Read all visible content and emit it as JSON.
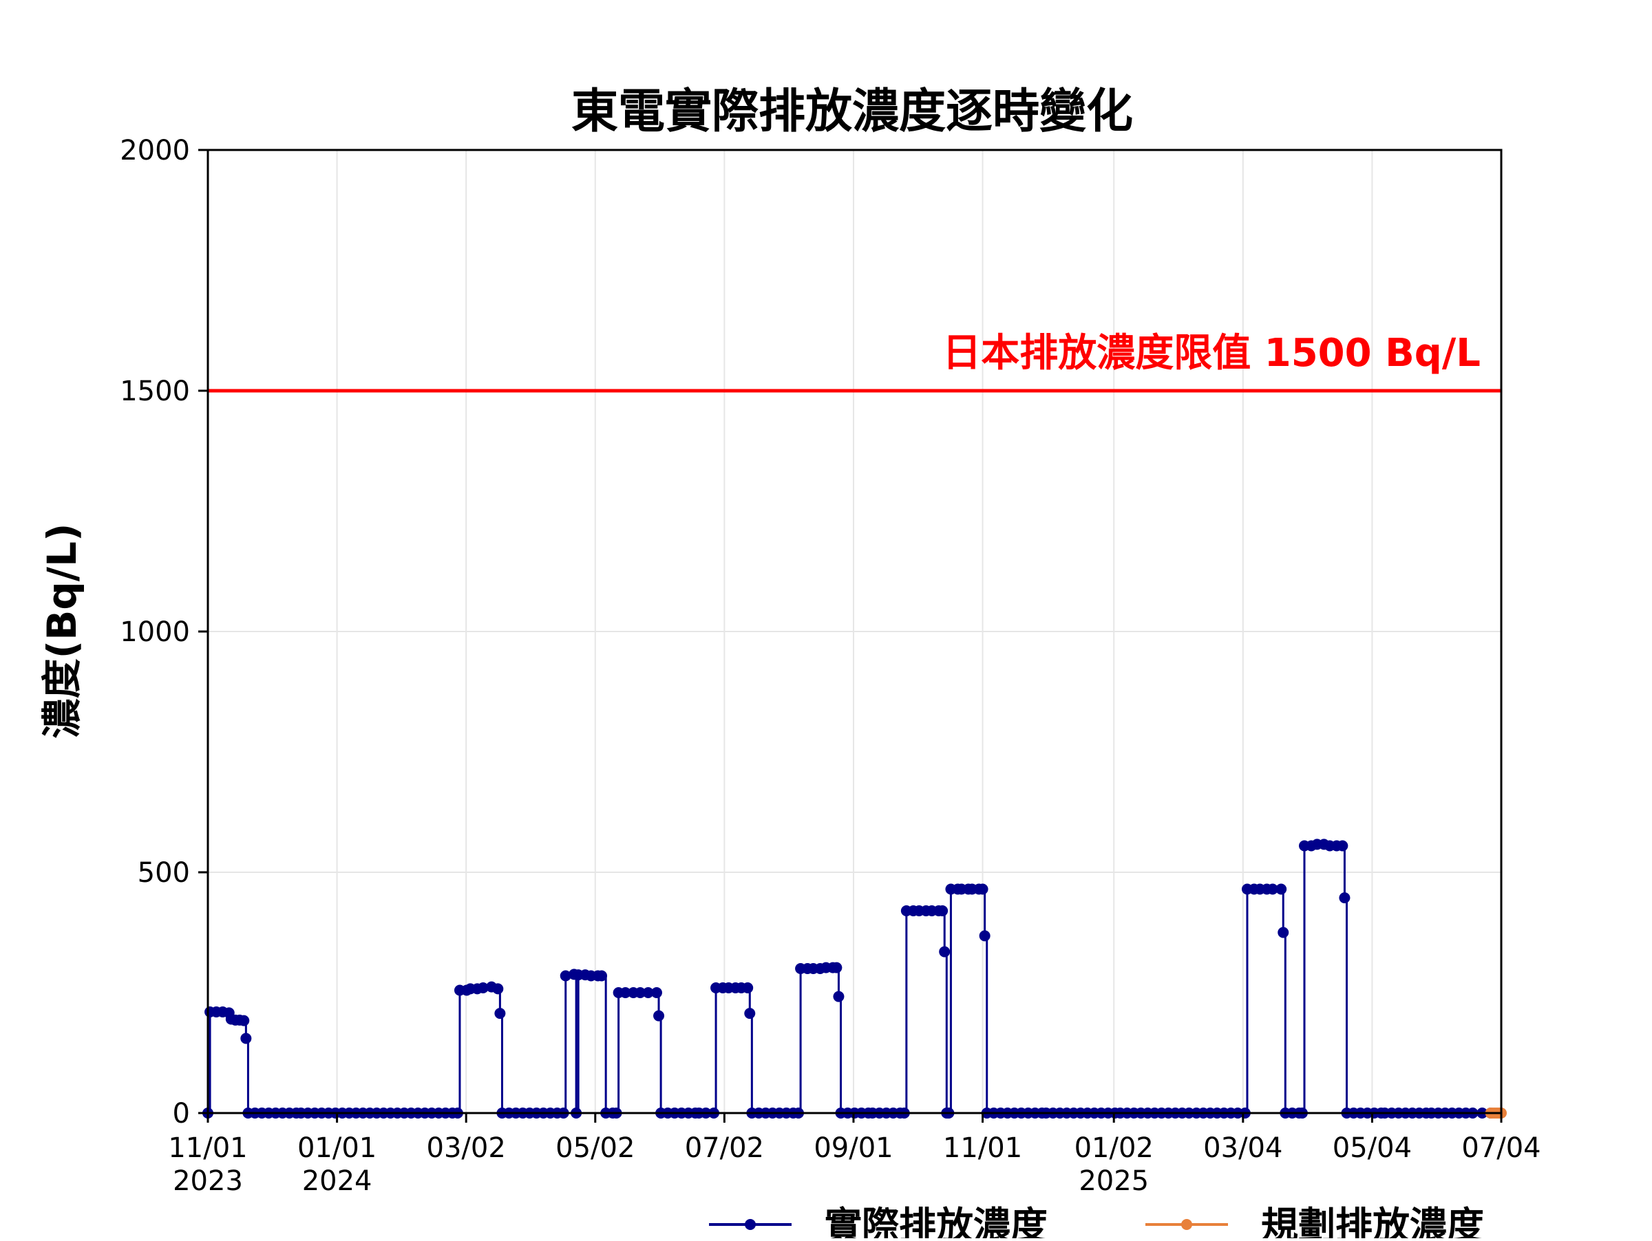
{
  "chart_data": {
    "type": "line",
    "title": "東電實際排放濃度逐時變化",
    "ylabel": "濃度(Bq/L)",
    "xlabel": "",
    "ylim": [
      0,
      2000
    ],
    "xlim": [
      "2023-11-01",
      "2025-07-04"
    ],
    "yticks": [
      {
        "value": 0,
        "label": "0"
      },
      {
        "value": 500,
        "label": "500"
      },
      {
        "value": 1000,
        "label": "1000"
      },
      {
        "value": 1500,
        "label": "1500"
      },
      {
        "value": 2000,
        "label": "2000"
      }
    ],
    "xticks": [
      {
        "date": "2023-11-01",
        "label": "11/01",
        "sublabel": "2023"
      },
      {
        "date": "2024-01-01",
        "label": "01/01",
        "sublabel": "2024"
      },
      {
        "date": "2024-03-02",
        "label": "03/02",
        "sublabel": ""
      },
      {
        "date": "2024-05-02",
        "label": "05/02",
        "sublabel": ""
      },
      {
        "date": "2024-07-02",
        "label": "07/02",
        "sublabel": ""
      },
      {
        "date": "2024-09-01",
        "label": "09/01",
        "sublabel": ""
      },
      {
        "date": "2024-11-01",
        "label": "11/01",
        "sublabel": ""
      },
      {
        "date": "2025-01-02",
        "label": "01/02",
        "sublabel": "2025"
      },
      {
        "date": "2025-03-04",
        "label": "03/04",
        "sublabel": ""
      },
      {
        "date": "2025-05-04",
        "label": "05/04",
        "sublabel": ""
      },
      {
        "date": "2025-07-04",
        "label": "07/04",
        "sublabel": ""
      }
    ],
    "grid": true,
    "legend_position": "bottom",
    "threshold": {
      "value": 1500,
      "label": "日本排放濃度限值 1500 Bq/L",
      "color": "#ff0000"
    },
    "series": [
      {
        "name": "實際排放濃度",
        "color": "#00008b",
        "points": [
          [
            "2023-11-01",
            0
          ],
          [
            "2023-11-02",
            210
          ],
          [
            "2023-11-05",
            210
          ],
          [
            "2023-11-08",
            210
          ],
          [
            "2023-11-11",
            208
          ],
          [
            "2023-11-12",
            195
          ],
          [
            "2023-11-14",
            193
          ],
          [
            "2023-11-16",
            193
          ],
          [
            "2023-11-18",
            192
          ],
          [
            "2023-11-19",
            155
          ],
          [
            "2023-11-20",
            0
          ],
          [
            "2023-12-15",
            0
          ],
          [
            "2024-01-10",
            0
          ],
          [
            "2024-02-05",
            0
          ],
          [
            "2024-02-27",
            0
          ],
          [
            "2024-02-28",
            255
          ],
          [
            "2024-03-04",
            258
          ],
          [
            "2024-03-10",
            260
          ],
          [
            "2024-03-14",
            262
          ],
          [
            "2024-03-17",
            258
          ],
          [
            "2024-03-18",
            207
          ],
          [
            "2024-03-19",
            0
          ],
          [
            "2024-04-01",
            0
          ],
          [
            "2024-04-17",
            0
          ],
          [
            "2024-04-18",
            285
          ],
          [
            "2024-04-22",
            288
          ],
          [
            "2024-04-23",
            0
          ],
          [
            "2024-04-24",
            287
          ],
          [
            "2024-04-30",
            285
          ],
          [
            "2024-05-05",
            285
          ],
          [
            "2024-05-07",
            0
          ],
          [
            "2024-05-12",
            0
          ],
          [
            "2024-05-13",
            250
          ],
          [
            "2024-05-20",
            250
          ],
          [
            "2024-05-27",
            250
          ],
          [
            "2024-05-31",
            250
          ],
          [
            "2024-06-01",
            202
          ],
          [
            "2024-06-02",
            0
          ],
          [
            "2024-06-20",
            0
          ],
          [
            "2024-06-27",
            0
          ],
          [
            "2024-06-28",
            260
          ],
          [
            "2024-07-04",
            260
          ],
          [
            "2024-07-10",
            260
          ],
          [
            "2024-07-13",
            260
          ],
          [
            "2024-07-14",
            207
          ],
          [
            "2024-07-15",
            0
          ],
          [
            "2024-08-06",
            0
          ],
          [
            "2024-08-07",
            300
          ],
          [
            "2024-08-13",
            300
          ],
          [
            "2024-08-19",
            302
          ],
          [
            "2024-08-24",
            302
          ],
          [
            "2024-08-25",
            242
          ],
          [
            "2024-08-26",
            0
          ],
          [
            "2024-09-10",
            0
          ],
          [
            "2024-09-25",
            0
          ],
          [
            "2024-09-26",
            420
          ],
          [
            "2024-10-02",
            420
          ],
          [
            "2024-10-08",
            420
          ],
          [
            "2024-10-13",
            420
          ],
          [
            "2024-10-14",
            335
          ],
          [
            "2024-10-15",
            0
          ],
          [
            "2024-10-16",
            0
          ],
          [
            "2024-10-17",
            465
          ],
          [
            "2024-10-22",
            465
          ],
          [
            "2024-10-27",
            465
          ],
          [
            "2024-11-01",
            465
          ],
          [
            "2024-11-02",
            368
          ],
          [
            "2024-11-03",
            0
          ],
          [
            "2024-12-01",
            0
          ],
          [
            "2025-01-05",
            0
          ],
          [
            "2025-02-10",
            0
          ],
          [
            "2025-03-05",
            0
          ],
          [
            "2025-03-06",
            465
          ],
          [
            "2025-03-12",
            465
          ],
          [
            "2025-03-18",
            465
          ],
          [
            "2025-03-22",
            465
          ],
          [
            "2025-03-23",
            375
          ],
          [
            "2025-03-24",
            0
          ],
          [
            "2025-04-01",
            0
          ],
          [
            "2025-04-02",
            555
          ],
          [
            "2025-04-08",
            558
          ],
          [
            "2025-04-14",
            555
          ],
          [
            "2025-04-20",
            555
          ],
          [
            "2025-04-21",
            447
          ],
          [
            "2025-04-22",
            0
          ],
          [
            "2025-05-10",
            0
          ],
          [
            "2025-06-01",
            0
          ],
          [
            "2025-06-25",
            0
          ],
          [
            "2025-06-29",
            0
          ]
        ]
      },
      {
        "name": "規劃排放濃度",
        "color": "#e8803a",
        "points": [
          [
            "2025-06-29",
            0
          ],
          [
            "2025-06-30",
            0
          ],
          [
            "2025-07-01",
            0
          ],
          [
            "2025-07-02",
            0
          ],
          [
            "2025-07-03",
            0
          ],
          [
            "2025-07-04",
            0
          ]
        ]
      }
    ]
  }
}
